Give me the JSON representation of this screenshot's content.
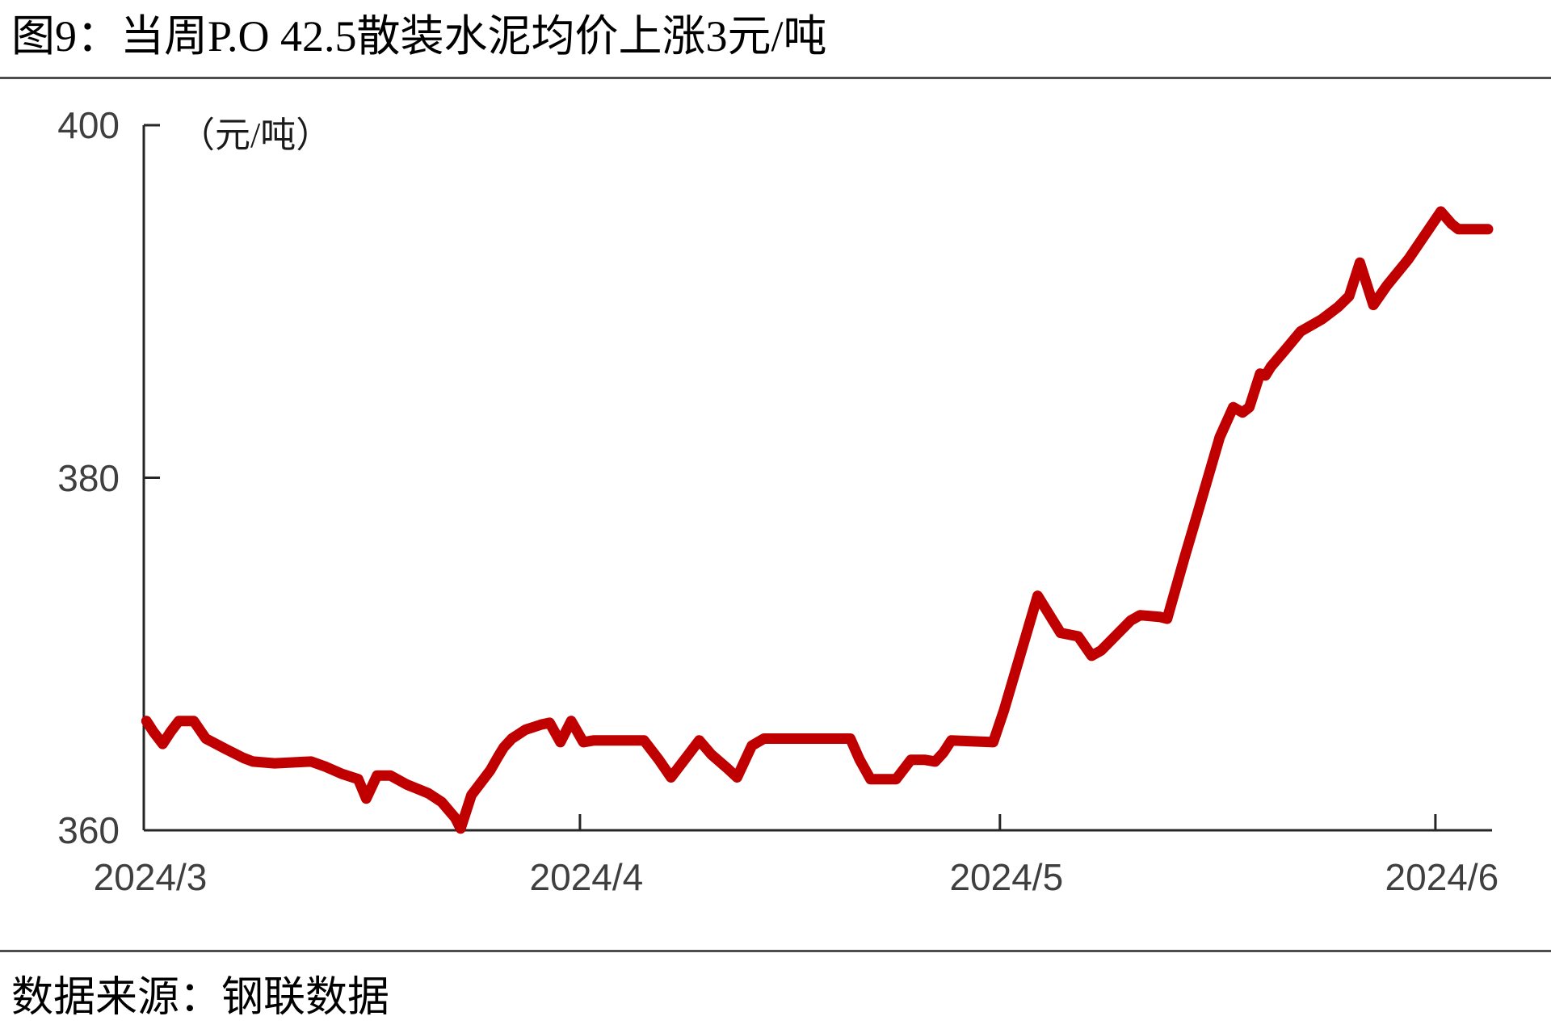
{
  "page": {
    "title": "图9：当周P.O 42.5散装水泥均价上涨3元/吨",
    "source": "数据来源：钢联数据"
  },
  "chart_data": {
    "type": "line",
    "title": "当周P.O 42.5散装水泥均价上涨3元/吨",
    "unit_label": "（元/吨）",
    "ylabel": "元/吨",
    "ylim": [
      360,
      400
    ],
    "yticks": [
      400,
      380,
      360
    ],
    "xticks": [
      {
        "label": "2024/3",
        "f": 0.0
      },
      {
        "label": "2024/4",
        "f": 0.3235
      },
      {
        "label": "2024/5",
        "f": 0.635
      },
      {
        "label": "2024/6",
        "f": 0.958
      }
    ],
    "grid": false,
    "legend_position": "none",
    "series": [
      {
        "name": "P.O 42.5散装水泥均价",
        "color": "#c00000",
        "points": [
          [
            0.002,
            366.2
          ],
          [
            0.007,
            365.6
          ],
          [
            0.014,
            364.9
          ],
          [
            0.02,
            365.6
          ],
          [
            0.026,
            366.2
          ],
          [
            0.037,
            366.2
          ],
          [
            0.046,
            365.2
          ],
          [
            0.061,
            364.6
          ],
          [
            0.074,
            364.1
          ],
          [
            0.081,
            363.9
          ],
          [
            0.097,
            363.8
          ],
          [
            0.124,
            363.9
          ],
          [
            0.135,
            363.6
          ],
          [
            0.147,
            363.2
          ],
          [
            0.159,
            362.9
          ],
          [
            0.165,
            361.8
          ],
          [
            0.173,
            363.1
          ],
          [
            0.183,
            363.1
          ],
          [
            0.195,
            362.6
          ],
          [
            0.211,
            362.1
          ],
          [
            0.221,
            361.6
          ],
          [
            0.231,
            360.7
          ],
          [
            0.235,
            360.1
          ],
          [
            0.243,
            362.0
          ],
          [
            0.25,
            362.7
          ],
          [
            0.257,
            363.4
          ],
          [
            0.263,
            364.2
          ],
          [
            0.267,
            364.7
          ],
          [
            0.273,
            365.2
          ],
          [
            0.283,
            365.7
          ],
          [
            0.295,
            366.0
          ],
          [
            0.301,
            366.1
          ],
          [
            0.309,
            365.0
          ],
          [
            0.317,
            366.2
          ],
          [
            0.326,
            365.0
          ],
          [
            0.334,
            365.1
          ],
          [
            0.371,
            365.1
          ],
          [
            0.382,
            364.0
          ],
          [
            0.391,
            363.0
          ],
          [
            0.401,
            364.0
          ],
          [
            0.412,
            365.1
          ],
          [
            0.421,
            364.3
          ],
          [
            0.433,
            363.5
          ],
          [
            0.44,
            363.0
          ],
          [
            0.451,
            364.8
          ],
          [
            0.46,
            365.2
          ],
          [
            0.524,
            365.2
          ],
          [
            0.531,
            364.0
          ],
          [
            0.539,
            362.9
          ],
          [
            0.558,
            362.9
          ],
          [
            0.569,
            364.0
          ],
          [
            0.579,
            364.0
          ],
          [
            0.587,
            363.9
          ],
          [
            0.593,
            364.4
          ],
          [
            0.599,
            365.1
          ],
          [
            0.63,
            365.0
          ],
          [
            0.638,
            366.8
          ],
          [
            0.663,
            373.3
          ],
          [
            0.68,
            371.2
          ],
          [
            0.693,
            371.0
          ],
          [
            0.703,
            369.9
          ],
          [
            0.71,
            370.2
          ],
          [
            0.732,
            371.9
          ],
          [
            0.739,
            372.2
          ],
          [
            0.754,
            372.1
          ],
          [
            0.759,
            372.0
          ],
          [
            0.772,
            375.5
          ],
          [
            0.782,
            378.1
          ],
          [
            0.798,
            382.3
          ],
          [
            0.808,
            384.0
          ],
          [
            0.815,
            383.7
          ],
          [
            0.82,
            384.0
          ],
          [
            0.828,
            385.9
          ],
          [
            0.832,
            385.8
          ],
          [
            0.836,
            386.3
          ],
          [
            0.846,
            387.2
          ],
          [
            0.858,
            388.3
          ],
          [
            0.874,
            389.0
          ],
          [
            0.886,
            389.7
          ],
          [
            0.894,
            390.3
          ],
          [
            0.902,
            392.2
          ],
          [
            0.912,
            389.8
          ],
          [
            0.922,
            390.9
          ],
          [
            0.938,
            392.4
          ],
          [
            0.962,
            395.1
          ],
          [
            0.97,
            394.4
          ],
          [
            0.975,
            394.1
          ],
          [
            0.997,
            394.1
          ]
        ]
      }
    ]
  },
  "style": {
    "line_color": "#c00000",
    "axis_color": "#262626",
    "tick_label_color": "#3f3f3f",
    "divider_color": "#4d4d4d"
  }
}
